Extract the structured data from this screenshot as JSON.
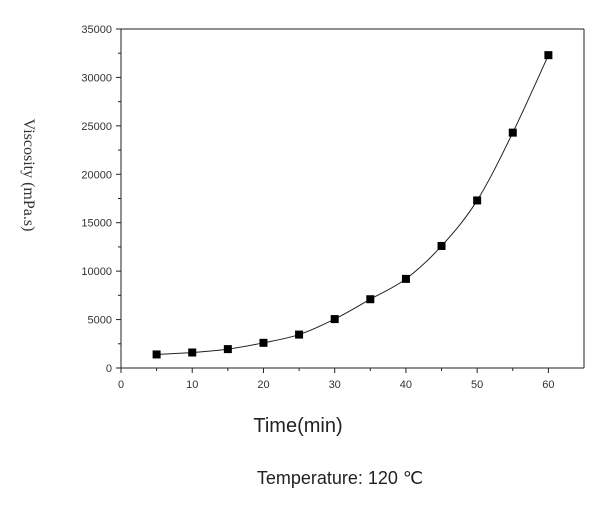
{
  "chart_data": {
    "type": "line",
    "xlabel": "Time(min)",
    "ylabel": "Viscosity (mPa.s)",
    "caption": "Temperature: 120 ℃",
    "xlim": [
      0,
      65
    ],
    "ylim": [
      0,
      35000
    ],
    "x_ticks": [
      0,
      10,
      20,
      30,
      40,
      50,
      60
    ],
    "y_ticks": [
      0,
      5000,
      10000,
      15000,
      20000,
      25000,
      30000,
      35000
    ],
    "grid": false,
    "markers": "filled-square",
    "series": [
      {
        "x": [
          5,
          10,
          15,
          20,
          25,
          30,
          35,
          40,
          45,
          50,
          55,
          60
        ],
        "values": [
          1400,
          1600,
          1950,
          2600,
          3450,
          5050,
          7100,
          9200,
          12600,
          17300,
          24300,
          32300
        ]
      }
    ]
  }
}
